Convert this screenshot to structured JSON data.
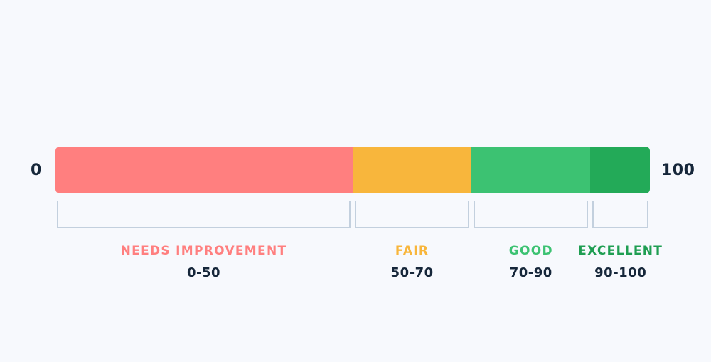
{
  "scale": {
    "min_label": "0",
    "max_label": "100",
    "min": 0,
    "max": 100
  },
  "bands": [
    {
      "name": "NEEDS IMPROVEMENT",
      "range": "0-50",
      "from": 0,
      "to": 50,
      "color": "#ff7f7f",
      "label_color": "#ff7f7f"
    },
    {
      "name": "FAIR",
      "range": "50-70",
      "from": 50,
      "to": 70,
      "color": "#f8b63c",
      "label_color": "#f8b63c"
    },
    {
      "name": "GOOD",
      "range": "70-90",
      "from": 70,
      "to": 90,
      "color": "#3cc272",
      "label_color": "#3cc272"
    },
    {
      "name": "EXCELLENT",
      "range": "90-100",
      "from": 90,
      "to": 100,
      "color": "#23aa58",
      "label_color": "#1f9e52"
    }
  ]
}
